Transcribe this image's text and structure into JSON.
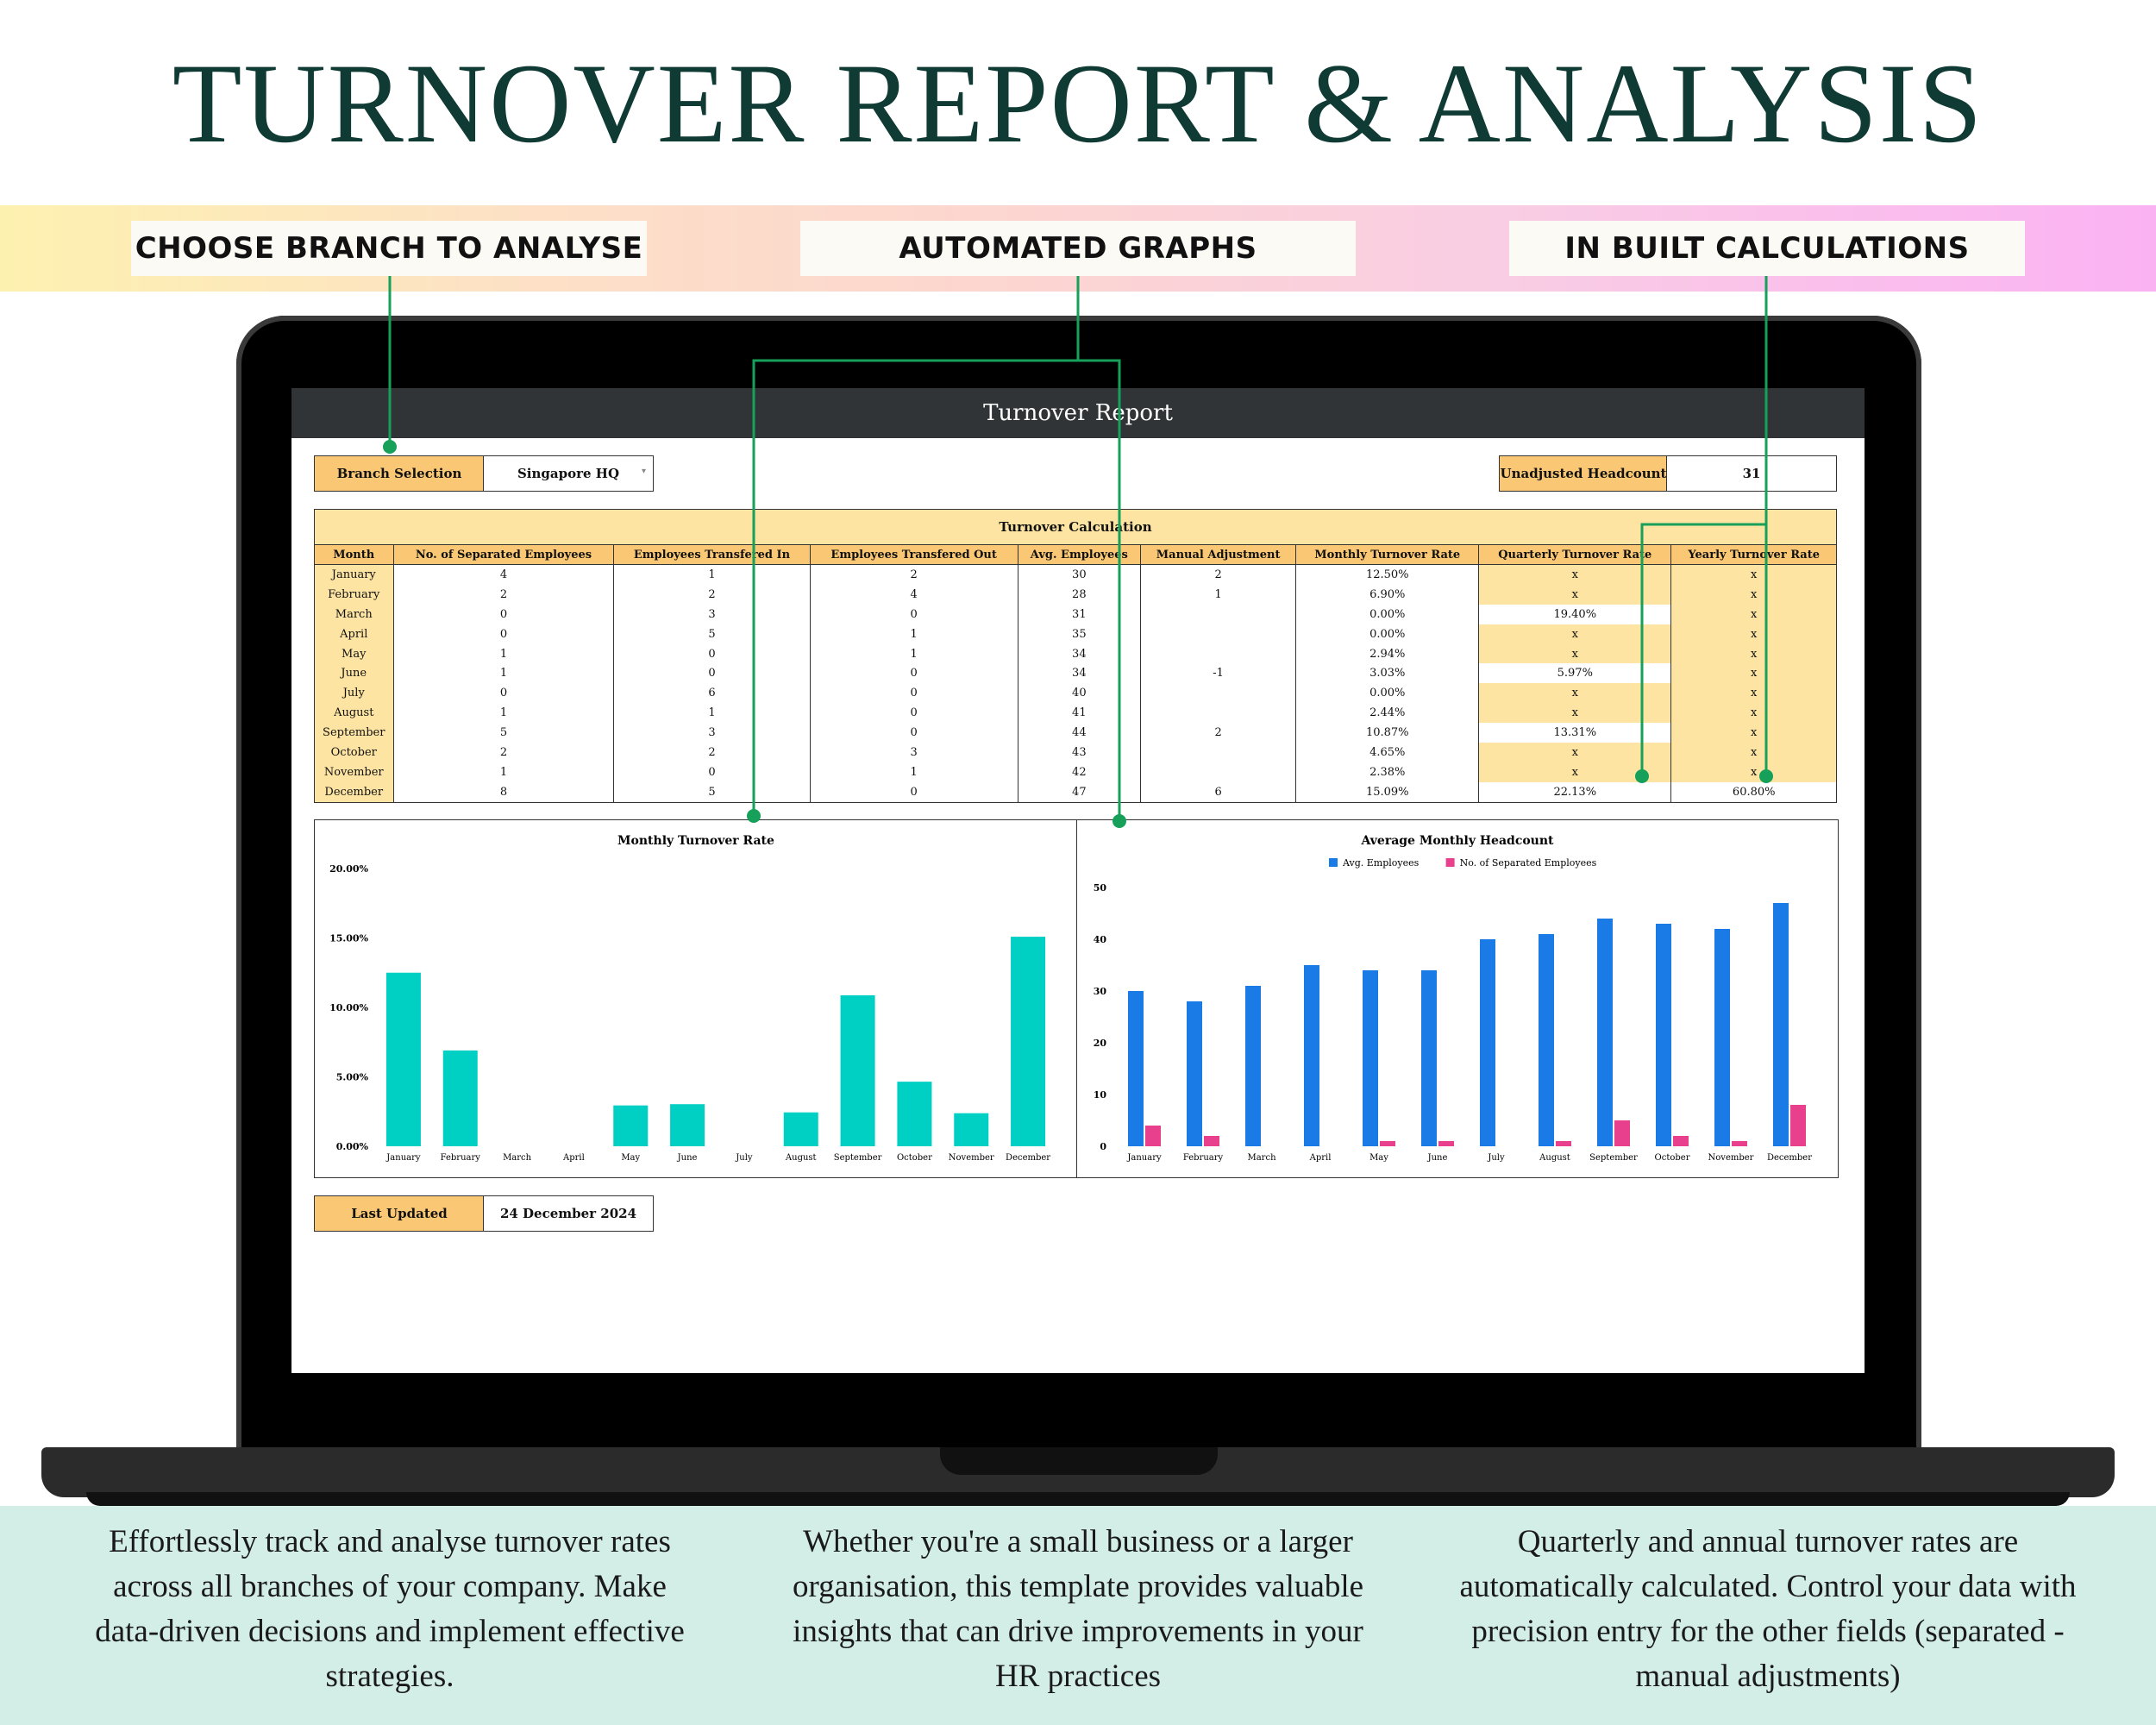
{
  "headline": "TURNOVER REPORT & ANALYSIS",
  "callouts": {
    "branch": "CHOOSE BRANCH TO ANALYSE",
    "graphs": "AUTOMATED GRAPHS",
    "calc": "IN BUILT CALCULATIONS"
  },
  "sheet": {
    "title": "Turnover Report",
    "branch_label": "Branch Selection",
    "branch_value": "Singapore HQ",
    "headcount_label": "Unadjusted Headcount",
    "headcount_value": "31",
    "table_caption": "Turnover Calculation",
    "columns": [
      "Month",
      "No. of Separated Employees",
      "Employees Transfered In",
      "Employees Transfered Out",
      "Avg. Employees",
      "Manual Adjustment",
      "Monthly Turnover Rate",
      "Quarterly Turnover Rate",
      "Yearly Turnover Rate"
    ],
    "rows": [
      [
        "January",
        "4",
        "1",
        "2",
        "30",
        "2",
        "12.50%",
        "x",
        "x"
      ],
      [
        "February",
        "2",
        "2",
        "4",
        "28",
        "1",
        "6.90%",
        "x",
        "x"
      ],
      [
        "March",
        "0",
        "3",
        "0",
        "31",
        "",
        "0.00%",
        "19.40%",
        "x"
      ],
      [
        "April",
        "0",
        "5",
        "1",
        "35",
        "",
        "0.00%",
        "x",
        "x"
      ],
      [
        "May",
        "1",
        "0",
        "1",
        "34",
        "",
        "2.94%",
        "x",
        "x"
      ],
      [
        "June",
        "1",
        "0",
        "0",
        "34",
        "-1",
        "3.03%",
        "5.97%",
        "x"
      ],
      [
        "July",
        "0",
        "6",
        "0",
        "40",
        "",
        "0.00%",
        "x",
        "x"
      ],
      [
        "August",
        "1",
        "1",
        "0",
        "41",
        "",
        "2.44%",
        "x",
        "x"
      ],
      [
        "September",
        "5",
        "3",
        "0",
        "44",
        "2",
        "10.87%",
        "13.31%",
        "x"
      ],
      [
        "October",
        "2",
        "2",
        "3",
        "43",
        "",
        "4.65%",
        "x",
        "x"
      ],
      [
        "November",
        "1",
        "0",
        "1",
        "42",
        "",
        "2.38%",
        "x",
        "x"
      ],
      [
        "December",
        "8",
        "5",
        "0",
        "47",
        "6",
        "15.09%",
        "22.13%",
        "60.80%"
      ]
    ],
    "last_updated_label": "Last Updated",
    "last_updated_value": "24 December 2024"
  },
  "chart_data": [
    {
      "type": "bar",
      "title": "Monthly Turnover Rate",
      "categories": [
        "January",
        "February",
        "March",
        "April",
        "May",
        "June",
        "July",
        "August",
        "September",
        "October",
        "November",
        "December"
      ],
      "values": [
        12.5,
        6.9,
        0,
        0,
        2.94,
        3.03,
        0,
        2.44,
        10.87,
        4.65,
        2.38,
        15.09
      ],
      "ylim": [
        0,
        20
      ],
      "yticks": [
        "0.00%",
        "5.00%",
        "10.00%",
        "15.00%",
        "20.00%"
      ],
      "color": "#00cfc4"
    },
    {
      "type": "bar",
      "title": "Average Monthly Headcount",
      "categories": [
        "January",
        "February",
        "March",
        "April",
        "May",
        "June",
        "July",
        "August",
        "September",
        "October",
        "November",
        "December"
      ],
      "series": [
        {
          "name": "Avg. Employees",
          "values": [
            30,
            28,
            31,
            35,
            34,
            34,
            40,
            41,
            44,
            43,
            42,
            47
          ],
          "color": "#1a7be6"
        },
        {
          "name": "No. of Separated Employees",
          "values": [
            4,
            2,
            0,
            0,
            1,
            1,
            0,
            1,
            5,
            2,
            1,
            8
          ],
          "color": "#e8408d"
        }
      ],
      "ylim": [
        0,
        50
      ],
      "yticks": [
        "0",
        "10",
        "20",
        "30",
        "40",
        "50"
      ],
      "legend": "top-center"
    }
  ],
  "paragraphs": {
    "left": "Effortlessly track and analyse turnover rates across all branches of your company. Make data-driven decisions and implement effective strategies.",
    "middle": "Whether you're a small business or a larger organisation, this template provides valuable insights that can drive improvements in your HR practices",
    "right": "Quarterly and annual turnover rates are automatically calculated. Control your data with precision entry for the other fields (separated - manual adjustments)"
  },
  "colors": {
    "headline": "#0f3b34",
    "connector": "#16a05a",
    "accent_orange": "#fac774",
    "pale_yellow": "#fde4a2",
    "bottom_bg": "#d3eee7"
  }
}
